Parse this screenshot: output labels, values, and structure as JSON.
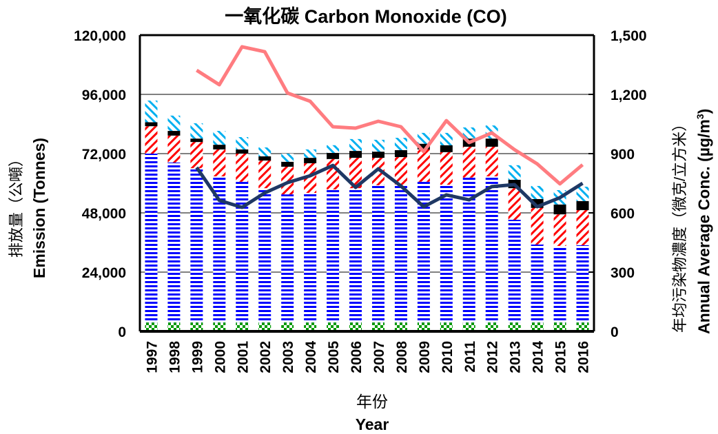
{
  "chart_data": {
    "type": "bar",
    "subtype": "stacked_bar_with_lines_dual_axis",
    "title": "一氧化碳 Carbon Monoxide (CO)",
    "xlabel_zh": "年份",
    "xlabel_en": "Year",
    "ylabel_left_zh": "排放量（公噸）",
    "ylabel_left_en": "Emission (Tonnes)",
    "ylabel_right_zh": "年均污染物濃度（微克/立方米）",
    "ylabel_right_en": "Annual Average Conc. (µg/m",
    "ylabel_right_sup": "3",
    "ylabel_right_close": ")",
    "ylim_left": [
      0,
      120000
    ],
    "ylim_right": [
      0,
      1500
    ],
    "yticks_left": [
      "0",
      "24,000",
      "48,000",
      "72,000",
      "96,000",
      "120,000"
    ],
    "yticks_right": [
      "0",
      "300",
      "600",
      "900",
      "1,200",
      "1,500"
    ],
    "grid": true,
    "legend": "none visible",
    "categories": [
      "1997",
      "1998",
      "1999",
      "2000",
      "2001",
      "2002",
      "2003",
      "2004",
      "2005",
      "2006",
      "2007",
      "2008",
      "2009",
      "2010",
      "2011",
      "2012",
      "2013",
      "2014",
      "2015",
      "2016"
    ],
    "series": [
      {
        "name": "Green checkered segment",
        "axis": "left",
        "kind": "stacked_bar",
        "color": "#009900",
        "pattern": "checker",
        "values": [
          3600,
          3600,
          3600,
          3600,
          3600,
          3600,
          3600,
          3600,
          3600,
          3600,
          3600,
          3600,
          3600,
          3600,
          3600,
          3600,
          3600,
          3600,
          3600,
          3600
        ]
      },
      {
        "name": "Blue horizontal-striped segment",
        "axis": "left",
        "kind": "stacked_bar",
        "color": "#0000ff",
        "pattern": "hstripe",
        "values": [
          68400,
          64800,
          62500,
          59200,
          57000,
          54400,
          51900,
          52500,
          53900,
          54400,
          55600,
          55800,
          57000,
          55800,
          58700,
          59200,
          41600,
          31600,
          31000,
          31300
        ]
      },
      {
        "name": "Red diagonal-striped segment",
        "axis": "left",
        "kind": "stacked_bar",
        "color": "#ff0000",
        "pattern": "diag-down",
        "values": [
          11100,
          10900,
          10600,
          10900,
          11400,
          11200,
          11200,
          12000,
          12300,
          12300,
          11100,
          11200,
          13100,
          13200,
          12500,
          12000,
          12800,
          14800,
          12800,
          14200
        ]
      },
      {
        "name": "Black solid segment",
        "axis": "left",
        "kind": "stacked_bar",
        "color": "#000000",
        "pattern": "solid",
        "values": [
          1600,
          1900,
          1400,
          1900,
          1700,
          1700,
          2000,
          2200,
          2500,
          2800,
          2500,
          2800,
          2300,
          2800,
          3300,
          3300,
          3400,
          3600,
          4000,
          3700
        ]
      },
      {
        "name": "Cyan diagonal-striped segment",
        "axis": "left",
        "kind": "stacked_bar",
        "color": "#00b0f0",
        "pattern": "diag-up",
        "values": [
          8800,
          6200,
          6200,
          5600,
          5000,
          3600,
          3300,
          3400,
          3100,
          4800,
          4800,
          5000,
          4400,
          5000,
          4500,
          5300,
          5900,
          5300,
          5800,
          5800
        ]
      },
      {
        "name": "Pink line",
        "axis": "right",
        "kind": "line",
        "color": "#ff7c80",
        "values": [
          null,
          null,
          1322,
          1249,
          1441,
          1416,
          1207,
          1165,
          1036,
          1029,
          1064,
          1036,
          910,
          1067,
          956,
          1005,
          920,
          848,
          747,
          844
        ]
      },
      {
        "name": "Dark navy line",
        "axis": "right",
        "kind": "line",
        "color": "#1f3864",
        "values": [
          null,
          null,
          830,
          663,
          628,
          701,
          753,
          788,
          840,
          729,
          823,
          736,
          631,
          691,
          666,
          733,
          743,
          631,
          677,
          750
        ]
      }
    ]
  }
}
